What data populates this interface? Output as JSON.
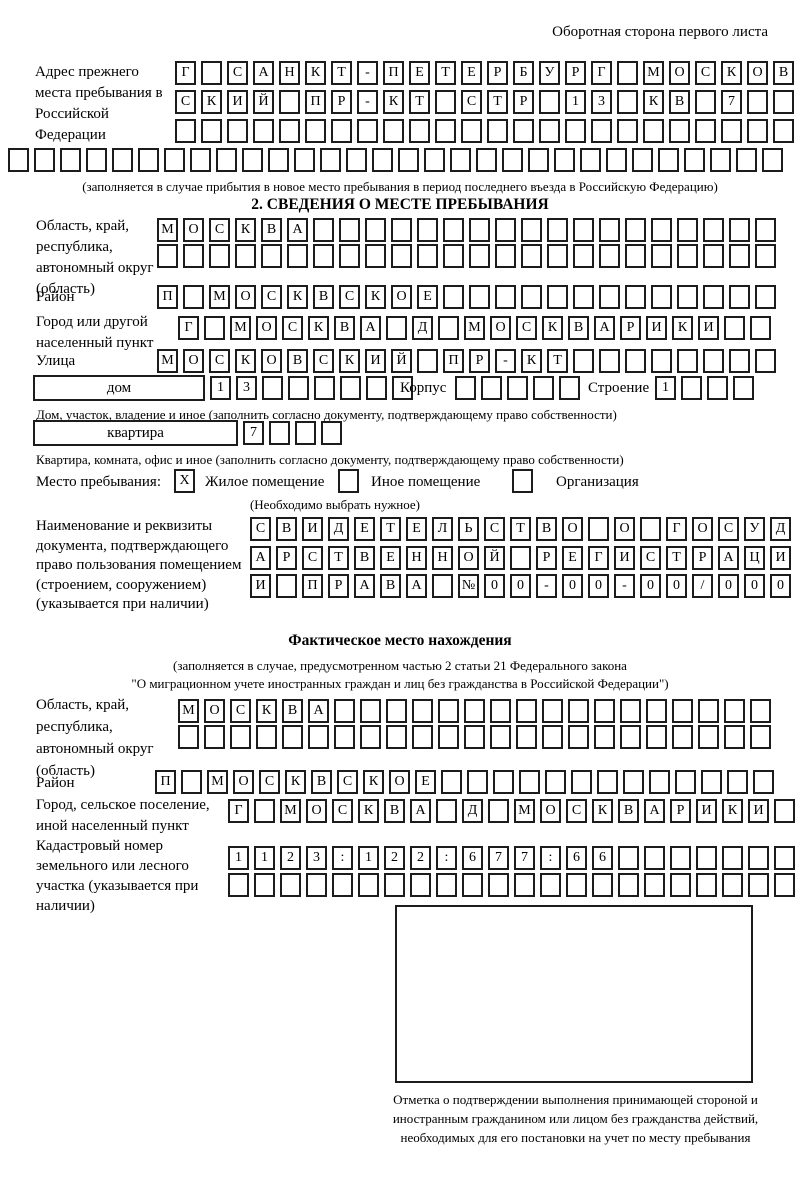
{
  "page": {
    "title_right": "Оборотная сторона первого листа"
  },
  "prev_address": {
    "label": "Адрес прежнего места пребывания в Российской Федерации",
    "row1": {
      "cells": 24,
      "value": "Г САНКТ-ПЕТЕРБУРГ МОСКОВ"
    },
    "row2": {
      "cells": 24,
      "value": "СКИЙ ПР-КТ СТР 13 КВ 7"
    },
    "row3": {
      "cells": 24,
      "value": ""
    },
    "row4": {
      "cells": 30,
      "value": ""
    },
    "caption": "(заполняется в случае прибытия в новое место пребывания в период последнего въезда в Российскую Федерацию)"
  },
  "section2": {
    "title": "2. СВЕДЕНИЯ О МЕСТЕ ПРЕБЫВАНИЯ",
    "oblast": {
      "label": "Область, край, республика, автономный округ (область)",
      "row1": {
        "cells": 24,
        "value": "МОСКВА"
      },
      "row2": {
        "cells": 24,
        "value": ""
      }
    },
    "raion": {
      "label": "Район",
      "row": {
        "cells": 24,
        "value": "П МОСКВСКОЕ"
      }
    },
    "gorod": {
      "label": "Город или другой населенный пункт",
      "row": {
        "cells": 23,
        "value": "Г МОСКВА Д МОСКВАРИКИ"
      }
    },
    "ulitsa": {
      "label": "Улица",
      "row": {
        "cells": 24,
        "value": "МОСКОВСКИЙ ПР-КТ"
      }
    },
    "dom": {
      "box_label": "дом",
      "cells1": {
        "cells": 8,
        "value": "13"
      },
      "korpus_label": "Корпус",
      "cells2": {
        "cells": 5,
        "value": ""
      },
      "stroenie_label": "Строение",
      "cells3": {
        "cells": 4,
        "value": "1"
      },
      "caption": "Дом, участок, владение и иное (заполнить согласно документу, подтверждающему право собственности)"
    },
    "kvartira": {
      "box_label": "квартира",
      "cells": {
        "cells": 4,
        "value": "7"
      },
      "caption": "Квартира, комната, офис и иное (заполнить согласно документу, подтверждающему право собственности)"
    },
    "mesto": {
      "label": "Место пребывания:",
      "check1": {
        "cells": 1,
        "value": "X"
      },
      "opt1": "Жилое помещение",
      "check2": {
        "cells": 1,
        "value": ""
      },
      "opt2": "Иное помещение",
      "check3": {
        "cells": 1,
        "value": ""
      },
      "opt3": "Организация",
      "note": "(Необходимо выбрать нужное)"
    },
    "document": {
      "label": "Наименование и реквизиты документа, подтверждающего право пользования помещением (строением, сооружением) (указывается при наличии)",
      "row1": {
        "cells": 21,
        "value": "СВИДЕТЕЛЬСТВО О ГОСУД"
      },
      "row2": {
        "cells": 21,
        "value": "АРСТВЕННОЙ РЕГИСТРАЦИ"
      },
      "row3": {
        "cells": 21,
        "value": "И ПРАВА №00-00-00/000"
      }
    }
  },
  "section3": {
    "title": "Фактическое место нахождения",
    "caption1": "(заполняется в случае, предусмотренном частью 2 статьи 21 Федерального закона",
    "caption2": "\"О миграционном учете иностранных граждан и лиц без гражданства в Российской Федерации\")",
    "oblast": {
      "label": "Область, край, республика, автономный округ (область)",
      "row1": {
        "cells": 23,
        "value": "МОСКВА"
      },
      "row2": {
        "cells": 23,
        "value": ""
      }
    },
    "raion": {
      "label": "Район",
      "row": {
        "cells": 24,
        "value": "П МОСКВСКОЕ"
      }
    },
    "gorod": {
      "label": "Город, сельское поселение, иной населенный пункт",
      "row": {
        "cells": 22,
        "value": "Г МОСКВА Д МОСКВАРИКИ"
      }
    },
    "kadastr": {
      "label": "Кадастровый номер земельного или лесного участка (указывается при наличии)",
      "row1": {
        "cells": 22,
        "value": "1123:122:677:66"
      },
      "row2": {
        "cells": 22,
        "value": ""
      }
    },
    "stamp_caption": "Отметка о подтверждении выполнения принимающей стороной и иностранным гражданином или лицом без гражданства действий, необходимых для его постановки на учет по месту пребывания"
  }
}
